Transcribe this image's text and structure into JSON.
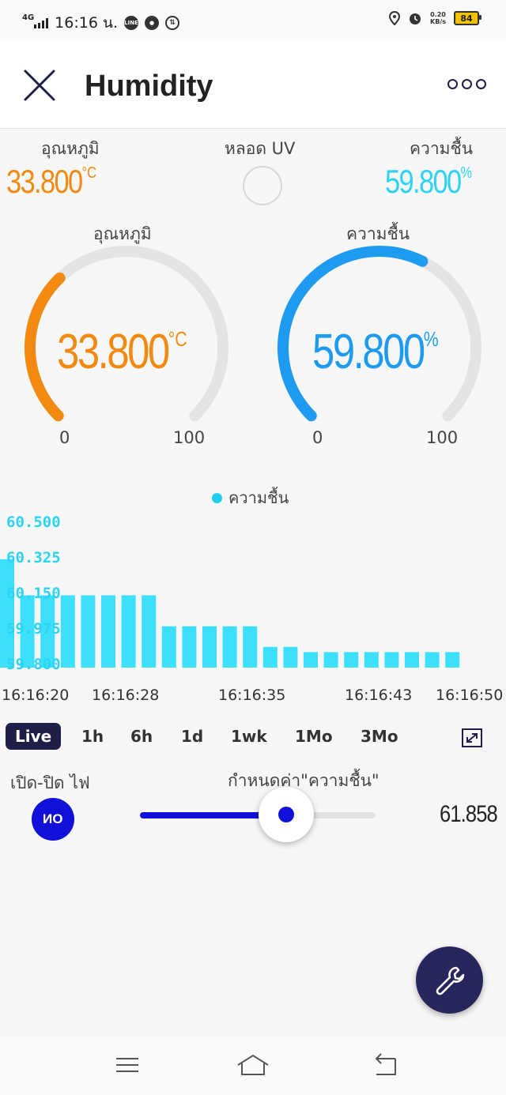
{
  "status_bar": {
    "network": "4G",
    "time": "16:16 น.",
    "speed_value": "0.20",
    "speed_unit": "KB/s",
    "battery": "84",
    "icons": [
      "line-icon",
      "leaf-icon",
      "sync-icon",
      "location-icon",
      "alarm-icon"
    ]
  },
  "header": {
    "title": "Humidity",
    "close_icon": "close-icon",
    "more_icon": "more-icon"
  },
  "summary": {
    "temperature": {
      "label": "อุณหภูมิ",
      "value": "33.800",
      "unit": "°C",
      "color": "#f28a12"
    },
    "uv": {
      "label": "หลอด UV",
      "state": "off"
    },
    "humidity": {
      "label": "ความชื้น",
      "value": "59.800",
      "unit": "%",
      "color": "#2dd3f4"
    }
  },
  "gauges": [
    {
      "label": "อุณหภูมิ",
      "value": "33.800",
      "unit": "°C",
      "min": "0",
      "max": "100",
      "fraction": 0.338,
      "color": "#f28a12"
    },
    {
      "label": "ความชื้น",
      "value": "59.800",
      "unit": "%",
      "min": "0",
      "max": "100",
      "fraction": 0.598,
      "color": "#1e9bf0"
    }
  ],
  "chart_data": {
    "type": "bar",
    "legend": [
      "ความชื้น"
    ],
    "series_color": "#3de0fb",
    "y_ticks": [
      "60.500",
      "60.325",
      "60.150",
      "59.975",
      "59.800"
    ],
    "ylim": [
      59.8,
      60.5
    ],
    "x_ticks": [
      "16:16:20",
      "16:16:28",
      "16:16:35",
      "16:16:43",
      "16:16:50"
    ],
    "values": [
      60.325,
      60.15,
      60.15,
      60.15,
      60.15,
      60.15,
      60.15,
      60.15,
      60.0,
      60.0,
      60.0,
      60.0,
      60.0,
      59.9,
      59.9,
      59.875,
      59.875,
      59.875,
      59.875,
      59.875,
      59.875,
      59.875,
      59.875
    ],
    "grid": false
  },
  "time_ranges": {
    "options": [
      "Live",
      "1h",
      "6h",
      "1d",
      "1wk",
      "1Mo",
      "3Mo"
    ],
    "selected": "Live",
    "expand_icon": "expand-icon"
  },
  "controls": {
    "switch_label": "เปิด-ปิด ไฟ",
    "switch_text": "ON",
    "slider_label": "กำหนดค่า\"ความชื้น\"",
    "slider_value": "61.858",
    "slider_fraction": 0.62
  },
  "fab_icon": "wrench-icon",
  "nav_icons": [
    "menu-icon",
    "home-icon",
    "back-icon"
  ]
}
